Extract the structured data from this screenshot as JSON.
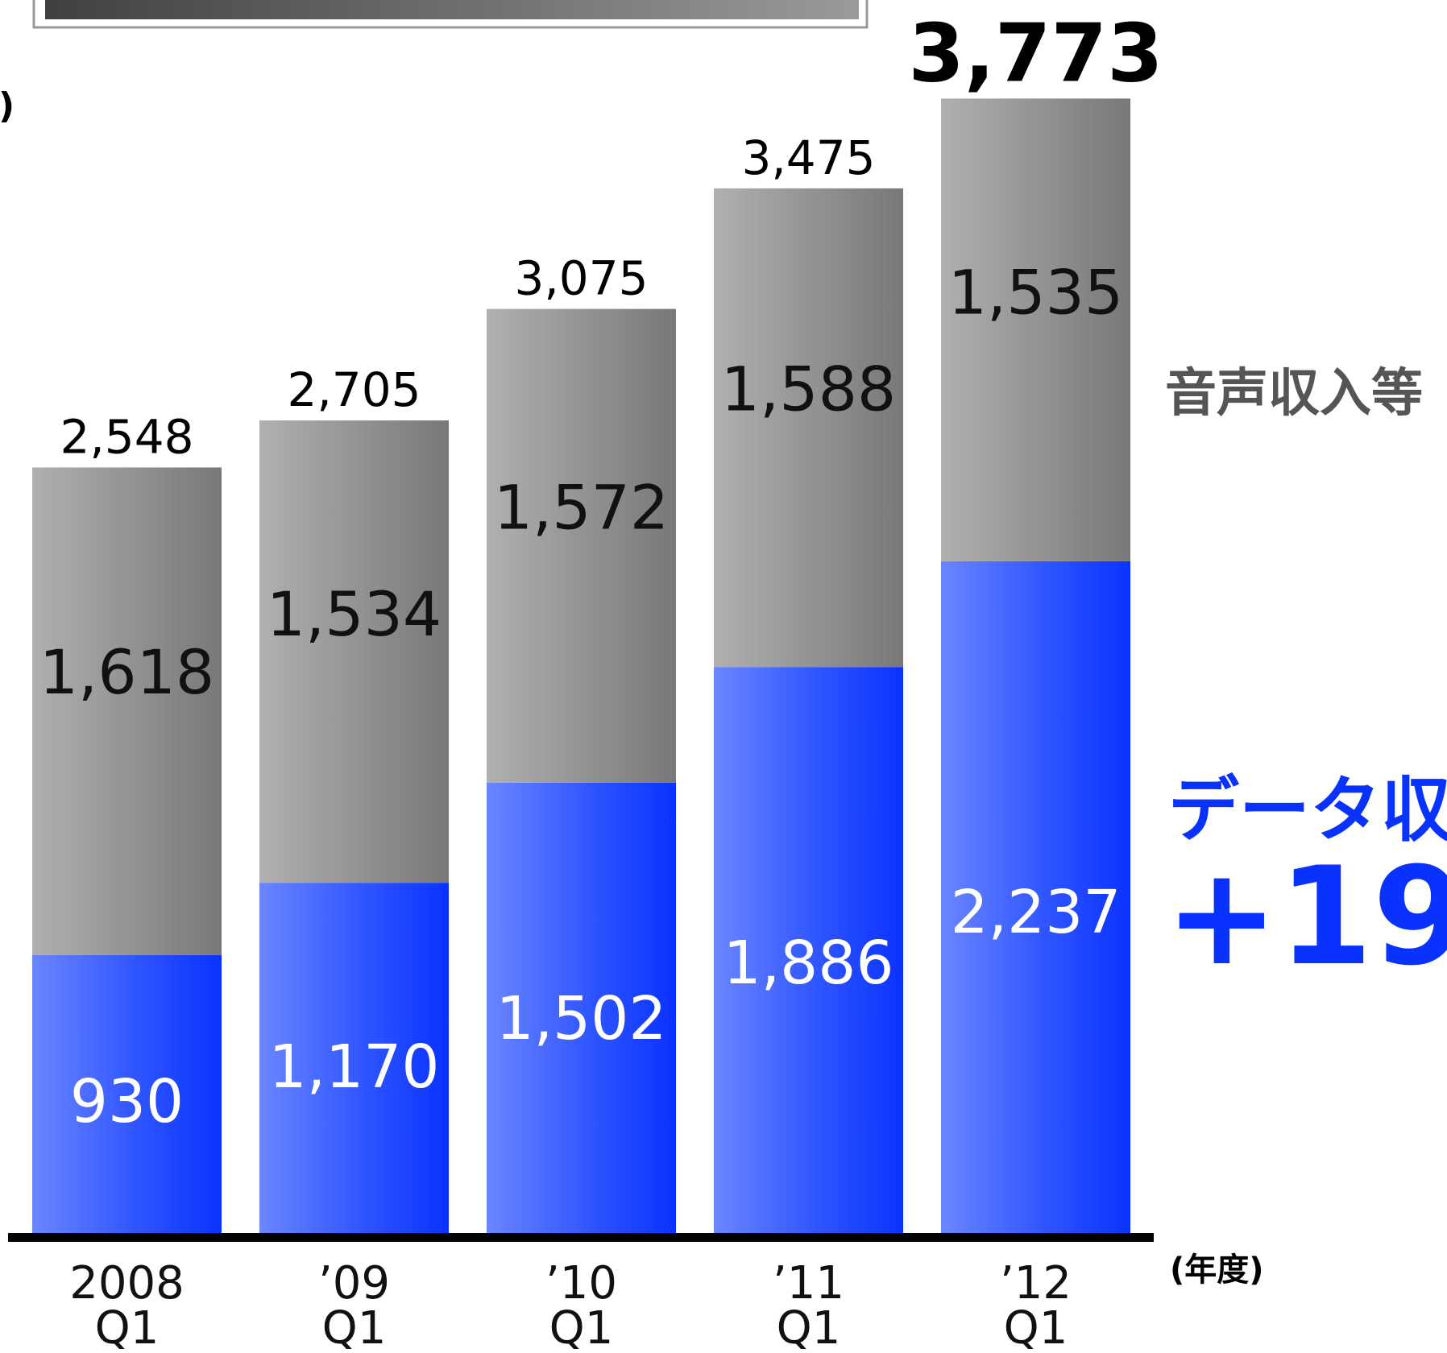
{
  "chart_data": {
    "type": "bar",
    "stacked": true,
    "categories": [
      "2008\nQ1",
      "’09\nQ1",
      "’10\nQ1",
      "’11\nQ1",
      "’12\nQ1"
    ],
    "category_lines": [
      [
        "2008",
        "Q1"
      ],
      [
        "’09",
        "Q1"
      ],
      [
        "’10",
        "Q1"
      ],
      [
        "’11",
        "Q1"
      ],
      [
        "’12",
        "Q1"
      ]
    ],
    "series": [
      {
        "name": "データ収",
        "values": [
          930,
          1170,
          1502,
          1886,
          2237
        ],
        "color": "#0a32ff"
      },
      {
        "name": "音声収入等",
        "values": [
          1618,
          1534,
          1572,
          1588,
          1535
        ],
        "color": "#808080"
      }
    ],
    "totals": [
      "2,548",
      "2,705",
      "3,075",
      "3,475",
      "3,773"
    ],
    "segment_labels": {
      "data": [
        "930",
        "1,170",
        "1,502",
        "1,886",
        "2,237"
      ],
      "voice": [
        "1,618",
        "1,534",
        "1,572",
        "1,588",
        "1,535"
      ]
    },
    "x_unit_label": "(年度)",
    "y_unit_fragment": ")",
    "growth_label": "+19",
    "ylim": [
      0,
      3773
    ],
    "grid": false,
    "legend": "inline-right"
  },
  "colors": {
    "blue": "#0a32ff",
    "blue_light": "#6b86ff",
    "gray_dark": "#787878",
    "gray_light": "#b0b0b0"
  }
}
